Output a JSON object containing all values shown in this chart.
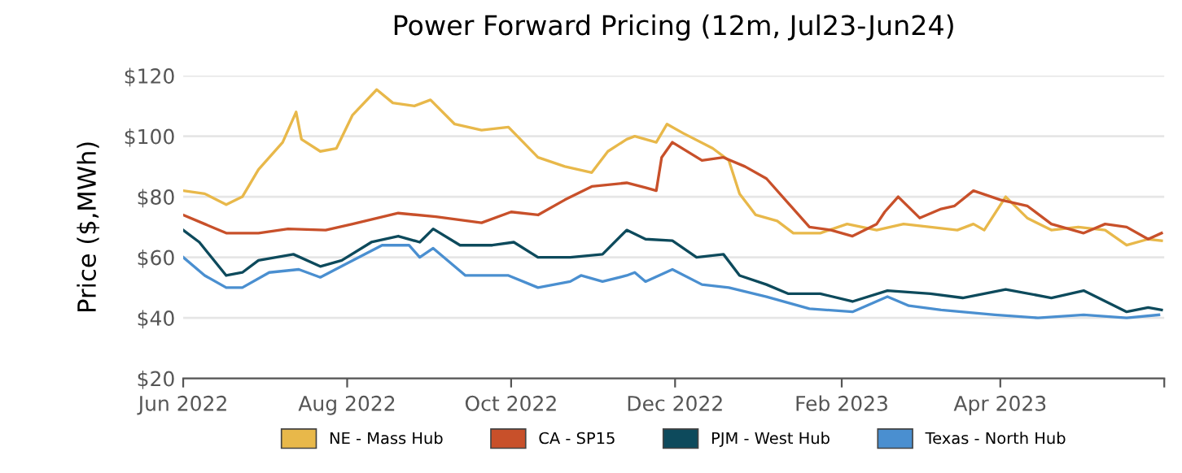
{
  "chart_data": {
    "type": "line",
    "title": "Power Forward Pricing (12m, Jul23-Jun24)",
    "ylabel": "Price ($,MWh)",
    "xlim": [
      "2022-06-01",
      "2023-06-01"
    ],
    "xticks": [
      {
        "value": "2022-06-01",
        "label": "Jun 2022"
      },
      {
        "value": "2022-08-01",
        "label": "Aug 2022"
      },
      {
        "value": "2022-10-01",
        "label": "Oct 2022"
      },
      {
        "value": "2022-12-01",
        "label": "Dec 2022"
      },
      {
        "value": "2023-02-01",
        "label": "Feb 2023"
      },
      {
        "value": "2023-04-01",
        "label": "Apr 2023"
      },
      {
        "value": "2023-06-01",
        "label": null
      }
    ],
    "ylim": [
      20,
      120
    ],
    "yticks": [
      {
        "value": 20,
        "label": "$20"
      },
      {
        "value": 40,
        "label": "$40"
      },
      {
        "value": 60,
        "label": "$60"
      },
      {
        "value": 80,
        "label": "$80"
      },
      {
        "value": 100,
        "label": "$100"
      },
      {
        "value": 120,
        "label": "$120"
      }
    ],
    "grid": "y",
    "legend": "bottom",
    "marker": "none",
    "line_style": "solid",
    "series": [
      {
        "name": "NE - Mass Hub",
        "color": "#e8b84a",
        "x": [
          "2022-06-01",
          "2022-06-09",
          "2022-06-17",
          "2022-06-23",
          "2022-06-29",
          "2022-07-08",
          "2022-07-13",
          "2022-07-15",
          "2022-07-22",
          "2022-07-28",
          "2022-08-03",
          "2022-08-12",
          "2022-08-18",
          "2022-08-26",
          "2022-09-01",
          "2022-09-10",
          "2022-09-20",
          "2022-09-30",
          "2022-10-11",
          "2022-10-21",
          "2022-10-31",
          "2022-11-06",
          "2022-11-13",
          "2022-11-16",
          "2022-11-24",
          "2022-11-28",
          "2022-12-04",
          "2022-12-15",
          "2022-12-21",
          "2022-12-25",
          "2022-12-31",
          "2023-01-08",
          "2023-01-14",
          "2023-01-24",
          "2023-02-03",
          "2023-02-14",
          "2023-02-24",
          "2023-03-06",
          "2023-03-16",
          "2023-03-22",
          "2023-03-26",
          "2023-04-03",
          "2023-04-11",
          "2023-04-20",
          "2023-04-30",
          "2023-05-10",
          "2023-05-18",
          "2023-05-26",
          "2023-05-31"
        ],
        "values": [
          82,
          81,
          77.4,
          80,
          89,
          98,
          108,
          99,
          95,
          96,
          107,
          115.4,
          111,
          110,
          112,
          104,
          102,
          103,
          93,
          90,
          88,
          95,
          99,
          100,
          98,
          104,
          101,
          96,
          92,
          81,
          74,
          72,
          68,
          68,
          71,
          69,
          71,
          70,
          69,
          71,
          69,
          80,
          73,
          69,
          70,
          69,
          64,
          66,
          65.5
        ]
      },
      {
        "name": "CA - SP15",
        "color": "#c8502a",
        "x": [
          "2022-06-01",
          "2022-06-09",
          "2022-06-17",
          "2022-06-29",
          "2022-07-10",
          "2022-07-24",
          "2022-08-03",
          "2022-08-20",
          "2022-09-03",
          "2022-09-20",
          "2022-10-01",
          "2022-10-11",
          "2022-10-21",
          "2022-10-31",
          "2022-11-13",
          "2022-11-20",
          "2022-11-24",
          "2022-11-26",
          "2022-11-30",
          "2022-12-11",
          "2022-12-19",
          "2022-12-27",
          "2023-01-04",
          "2023-01-12",
          "2023-01-20",
          "2023-01-28",
          "2023-02-05",
          "2023-02-14",
          "2023-02-17",
          "2023-02-22",
          "2023-03-02",
          "2023-03-10",
          "2023-03-15",
          "2023-03-22",
          "2023-04-01",
          "2023-04-11",
          "2023-04-20",
          "2023-05-02",
          "2023-05-10",
          "2023-05-18",
          "2023-05-26",
          "2023-05-31"
        ],
        "values": [
          74,
          71,
          68,
          68,
          69.4,
          69,
          71,
          74.6,
          73.4,
          71.4,
          75,
          74,
          79,
          83.4,
          84.6,
          83,
          82,
          93,
          98,
          92,
          93,
          90,
          86,
          78,
          70,
          69,
          67,
          71,
          75,
          80,
          73,
          76,
          77,
          82,
          79,
          77,
          71,
          68,
          71,
          70,
          66,
          68
        ]
      },
      {
        "name": "PJM - West Hub",
        "color": "#0d4a5c",
        "x": [
          "2022-06-01",
          "2022-06-07",
          "2022-06-17",
          "2022-06-23",
          "2022-06-29",
          "2022-07-12",
          "2022-07-22",
          "2022-07-30",
          "2022-08-10",
          "2022-08-20",
          "2022-08-28",
          "2022-09-02",
          "2022-09-12",
          "2022-09-24",
          "2022-10-02",
          "2022-10-11",
          "2022-10-23",
          "2022-11-04",
          "2022-11-13",
          "2022-11-20",
          "2022-11-30",
          "2022-12-09",
          "2022-12-19",
          "2022-12-25",
          "2023-01-04",
          "2023-01-12",
          "2023-01-24",
          "2023-02-05",
          "2023-02-18",
          "2023-03-06",
          "2023-03-18",
          "2023-04-03",
          "2023-04-20",
          "2023-05-02",
          "2023-05-18",
          "2023-05-26",
          "2023-05-31"
        ],
        "values": [
          69,
          65,
          54,
          55,
          59,
          61,
          57,
          59,
          65,
          67,
          65,
          69.4,
          64,
          64,
          65,
          60,
          60,
          61,
          69,
          66,
          65.5,
          60,
          61,
          54,
          51,
          48,
          48,
          45.4,
          49,
          48,
          46.6,
          49.4,
          46.6,
          49,
          42,
          43.4,
          42.6
        ]
      },
      {
        "name": "Texas - North Hub",
        "color": "#4a8fd0",
        "x": [
          "2022-06-01",
          "2022-06-09",
          "2022-06-17",
          "2022-06-23",
          "2022-07-03",
          "2022-07-14",
          "2022-07-22",
          "2022-08-01",
          "2022-08-14",
          "2022-08-24",
          "2022-08-28",
          "2022-09-02",
          "2022-09-14",
          "2022-09-30",
          "2022-10-11",
          "2022-10-23",
          "2022-10-27",
          "2022-11-04",
          "2022-11-13",
          "2022-11-16",
          "2022-11-20",
          "2022-11-30",
          "2022-12-11",
          "2022-12-21",
          "2023-01-04",
          "2023-01-20",
          "2023-02-05",
          "2023-02-18",
          "2023-02-26",
          "2023-03-10",
          "2023-03-30",
          "2023-04-15",
          "2023-05-02",
          "2023-05-18",
          "2023-05-30"
        ],
        "values": [
          60,
          54,
          50,
          50,
          55,
          56,
          53.4,
          58,
          64,
          64,
          60,
          63,
          54,
          54,
          50,
          52,
          54,
          52,
          54,
          55,
          52,
          56,
          51,
          50,
          47,
          43,
          42,
          47,
          44,
          42.6,
          41,
          40,
          41,
          40,
          41
        ]
      }
    ]
  }
}
